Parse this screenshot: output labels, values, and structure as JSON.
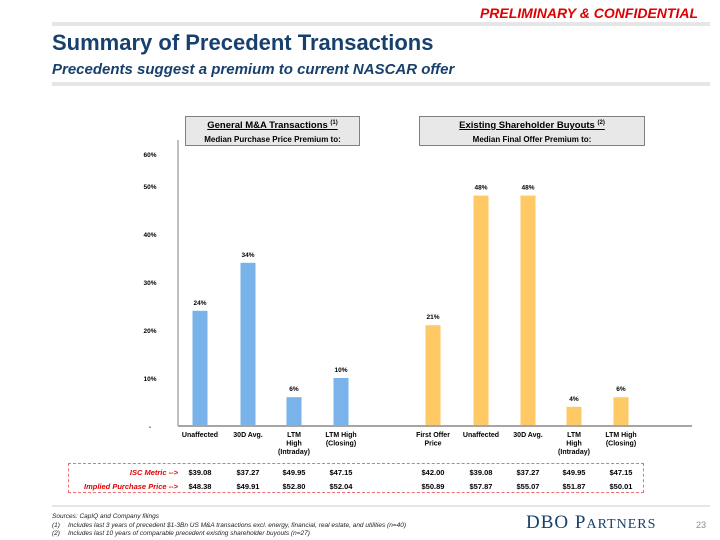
{
  "header": {
    "confidential": "PRELIMINARY & CONFIDENTIAL",
    "title": "Summary of Precedent Transactions",
    "subtitle": "Precedents suggest a premium to current NASCAR offer"
  },
  "panels": {
    "left": {
      "title": "General M&A Transactions",
      "footnote_ref": "(1)",
      "subtitle": "Median Purchase Price Premium to:"
    },
    "right": {
      "title": "Existing Shareholder Buyouts",
      "footnote_ref": "(2)",
      "subtitle": "Median Final Offer Premium to:"
    }
  },
  "chart_data": {
    "type": "bar",
    "ylim": [
      0,
      60
    ],
    "yticks": [
      0,
      10,
      20,
      30,
      40,
      50,
      60
    ],
    "ytick_labels": [
      "-",
      "10%",
      "20%",
      "30%",
      "40%",
      "50%",
      "60%"
    ],
    "grid": false,
    "series": [
      {
        "name": "General M&A Transactions",
        "color": "#7ab3ea",
        "categories": [
          "Unaffected",
          "30D Avg.",
          "LTM High (Intraday)",
          "LTM High (Closing)"
        ],
        "category_lines": [
          [
            "Unaffected"
          ],
          [
            "30D Avg."
          ],
          [
            "LTM",
            "High",
            "(Intraday)"
          ],
          [
            "LTM High",
            "(Closing)"
          ]
        ],
        "values": [
          24,
          34,
          6,
          10
        ],
        "labels": [
          "24%",
          "34%",
          "6%",
          "10%"
        ]
      },
      {
        "name": "Existing Shareholder Buyouts",
        "color": "#ffc966",
        "categories": [
          "First Offer Price",
          "Unaffected",
          "30D Avg.",
          "LTM High (Intraday)",
          "LTM High (Closing)"
        ],
        "category_lines": [
          [
            "First Offer",
            "Price"
          ],
          [
            "Unaffected"
          ],
          [
            "30D Avg."
          ],
          [
            "LTM",
            "High",
            "(Intraday)"
          ],
          [
            "LTM High",
            "(Closing)"
          ]
        ],
        "values": [
          21,
          48,
          48,
          4,
          6
        ],
        "labels": [
          "21%",
          "48%",
          "48%",
          "4%",
          "6%"
        ]
      }
    ]
  },
  "metrics": {
    "isc_label": "ISC Metric -->",
    "implied_label": "Implied Purchase  Price -->",
    "isc_values": [
      "$39.08",
      "$37.27",
      "$49.95",
      "$47.15",
      "$42.00",
      "$39.08",
      "$37.27",
      "$49.95",
      "$47.15"
    ],
    "implied_values": [
      "$48.38",
      "$49.91",
      "$52.80",
      "$52.04",
      "$50.89",
      "$57.87",
      "$55.07",
      "$51.87",
      "$50.01"
    ]
  },
  "footer": {
    "sources": "Sources: CapIQ and Company filings",
    "notes": [
      {
        "num": "(1)",
        "text": "Includes last 3 years of precedent $1-3Bn US M&A transactions excl. energy, financial, real estate, and utilities (n=40)"
      },
      {
        "num": "(2)",
        "text": "Includes last 10 years of comparable precedent existing shareholder buyouts (n=27)"
      }
    ],
    "logo_main": "DBO",
    "logo_p": "P",
    "logo_rest": "ARTNERS",
    "page_number": "23"
  }
}
